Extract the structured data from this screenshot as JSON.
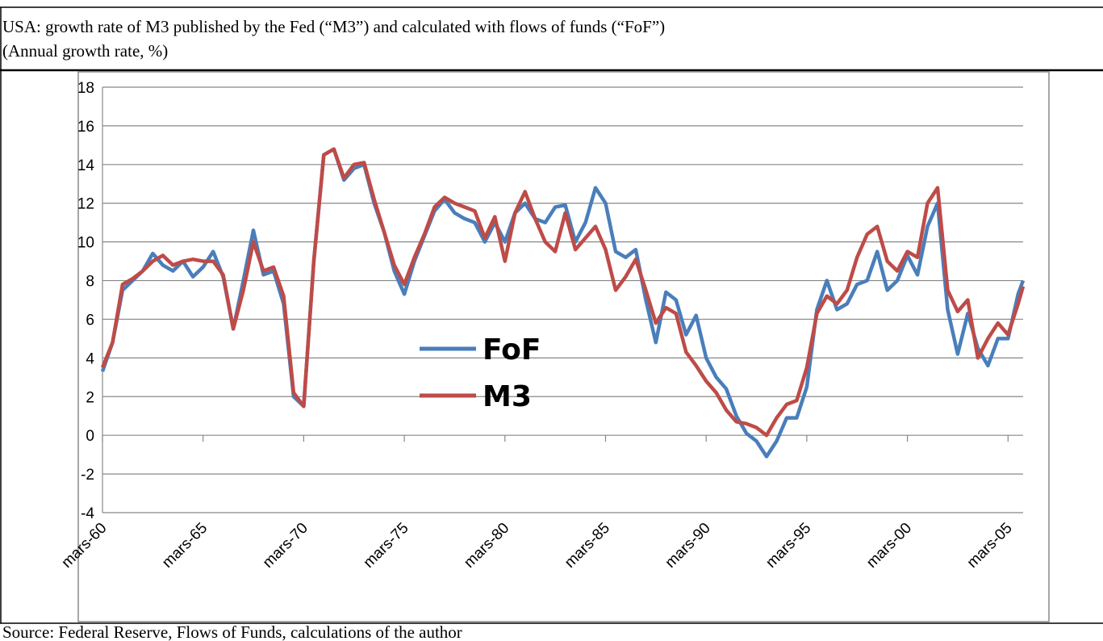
{
  "chart_data": {
    "type": "line",
    "title": "USA: growth rate of M3 published by the Fed (“M3”) and calculated with flows of funds (“FoF”)",
    "subtitle": "(Annual growth rate, %)",
    "source": "Source: Federal Reserve, Flows of Funds, calculations of the author",
    "x": [
      1960,
      1960.5,
      1961,
      1961.5,
      1962,
      1962.5,
      1963,
      1963.5,
      1964,
      1964.5,
      1965,
      1965.5,
      1966,
      1966.5,
      1967,
      1967.5,
      1968,
      1968.5,
      1969,
      1969.5,
      1970,
      1970.5,
      1971,
      1971.5,
      1972,
      1972.5,
      1973,
      1973.5,
      1974,
      1974.5,
      1975,
      1975.5,
      1976,
      1976.5,
      1977,
      1977.5,
      1978,
      1978.5,
      1979,
      1979.5,
      1980,
      1980.5,
      1981,
      1981.5,
      1982,
      1982.5,
      1983,
      1983.5,
      1984,
      1984.5,
      1985,
      1985.5,
      1986,
      1986.5,
      1987,
      1987.5,
      1988,
      1988.5,
      1989,
      1989.5,
      1990,
      1990.5,
      1991,
      1991.5,
      1992,
      1992.5,
      1993,
      1993.5,
      1994,
      1994.5,
      1995,
      1995.5,
      1996,
      1996.5,
      1997,
      1997.5,
      1998,
      1998.5,
      1999,
      1999.5,
      2000,
      2000.5,
      2001,
      2001.5,
      2002,
      2002.5,
      2003,
      2003.5,
      2004,
      2004.5,
      2005,
      2005.5,
      2005.75
    ],
    "series": [
      {
        "name": "FoF",
        "color": "#4a7ebb",
        "values": [
          3.3,
          4.8,
          7.5,
          8.0,
          8.5,
          9.4,
          8.8,
          8.5,
          9.0,
          8.2,
          8.7,
          9.5,
          8.2,
          5.5,
          8.0,
          10.6,
          8.3,
          8.5,
          6.8,
          2.0,
          1.5,
          9.0,
          14.5,
          14.8,
          13.2,
          13.8,
          14.0,
          12.0,
          10.5,
          8.5,
          7.3,
          9.0,
          10.3,
          11.6,
          12.2,
          11.5,
          11.2,
          11.0,
          10.0,
          11.0,
          10.0,
          11.5,
          12.0,
          11.2,
          11.0,
          11.8,
          11.9,
          10.0,
          11.0,
          12.8,
          12.0,
          9.5,
          9.2,
          9.6,
          7.0,
          4.8,
          7.4,
          7.0,
          5.2,
          6.2,
          4.0,
          3.0,
          2.4,
          1.0,
          0.1,
          -0.3,
          -1.1,
          -0.3,
          0.9,
          0.9,
          2.5,
          6.5,
          8.0,
          6.5,
          6.8,
          7.8,
          8.0,
          9.5,
          7.5,
          8.0,
          9.3,
          8.3,
          10.8,
          12.0,
          6.5,
          4.2,
          6.3,
          4.5,
          3.6,
          5.0,
          5.0,
          7.3,
          8.0
        ]
      },
      {
        "name": "M3",
        "color": "#be4b48",
        "values": [
          3.5,
          4.8,
          7.8,
          8.1,
          8.5,
          9.0,
          9.3,
          8.8,
          9.0,
          9.1,
          9.0,
          9.0,
          8.3,
          5.5,
          7.5,
          10.0,
          8.5,
          8.7,
          7.2,
          2.2,
          1.5,
          9.0,
          14.5,
          14.8,
          13.3,
          14.0,
          14.1,
          12.2,
          10.5,
          8.8,
          7.8,
          9.2,
          10.4,
          11.8,
          12.3,
          12.0,
          11.8,
          11.6,
          10.2,
          11.3,
          9.0,
          11.5,
          12.6,
          11.2,
          10.0,
          9.5,
          11.5,
          9.6,
          10.2,
          10.8,
          9.6,
          7.5,
          8.2,
          9.1,
          7.5,
          5.8,
          6.6,
          6.3,
          4.3,
          3.6,
          2.8,
          2.2,
          1.3,
          0.7,
          0.6,
          0.4,
          0.0,
          0.9,
          1.6,
          1.8,
          3.5,
          6.3,
          7.2,
          6.8,
          7.5,
          9.2,
          10.4,
          10.8,
          9.0,
          8.5,
          9.5,
          9.2,
          12.0,
          12.8,
          7.5,
          6.4,
          7.0,
          4.0,
          5.0,
          5.8,
          5.2,
          6.8,
          7.7
        ]
      }
    ],
    "xlim": [
      1960,
      2005.75
    ],
    "xticks": [
      {
        "value": 1960,
        "label": "mars-60"
      },
      {
        "value": 1965,
        "label": "mars-65"
      },
      {
        "value": 1970,
        "label": "mars-70"
      },
      {
        "value": 1975,
        "label": "mars-75"
      },
      {
        "value": 1980,
        "label": "mars-80"
      },
      {
        "value": 1985,
        "label": "mars-85"
      },
      {
        "value": 1990,
        "label": "mars-90"
      },
      {
        "value": 1995,
        "label": "mars-95"
      },
      {
        "value": 2000,
        "label": "mars-00"
      },
      {
        "value": 2005,
        "label": "mars-05"
      }
    ],
    "ylim": [
      -4,
      18
    ],
    "yticks": [
      -4,
      -2,
      0,
      2,
      4,
      6,
      8,
      10,
      12,
      14,
      16,
      18
    ],
    "grid": true
  }
}
